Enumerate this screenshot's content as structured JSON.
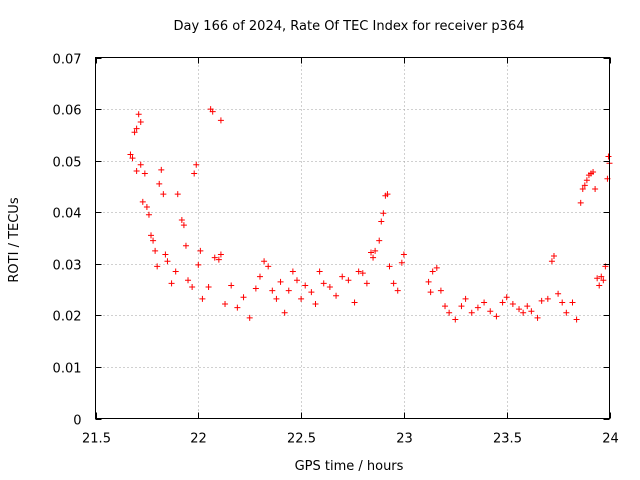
{
  "chart_data": {
    "type": "scatter",
    "title": "Day 166 of 2024, Rate Of TEC Index for receiver p364",
    "xlabel": "GPS time / hours",
    "ylabel": "ROTI / TECUs",
    "xlim": [
      21.5,
      24.0
    ],
    "ylim": [
      0,
      0.07
    ],
    "xticks": [
      21.5,
      22,
      22.5,
      23,
      23.5,
      24
    ],
    "xtick_labels": [
      "21.5",
      "22",
      "22.5",
      "23",
      "23.5",
      "24"
    ],
    "yticks": [
      0,
      0.01,
      0.02,
      0.03,
      0.04,
      0.05,
      0.06,
      0.07
    ],
    "ytick_labels": [
      "0",
      "0.01",
      "0.02",
      "0.03",
      "0.04",
      "0.05",
      "0.06",
      "0.07"
    ],
    "grid": true,
    "marker": "+",
    "color": "#ff0000",
    "series": [
      {
        "name": "ROTI",
        "points": [
          [
            21.67,
            0.0512
          ],
          [
            21.68,
            0.0505
          ],
          [
            21.69,
            0.0555
          ],
          [
            21.7,
            0.0562
          ],
          [
            21.71,
            0.059
          ],
          [
            21.72,
            0.0575
          ],
          [
            21.7,
            0.048
          ],
          [
            21.72,
            0.0492
          ],
          [
            21.74,
            0.0475
          ],
          [
            21.73,
            0.042
          ],
          [
            21.75,
            0.041
          ],
          [
            21.76,
            0.0395
          ],
          [
            21.77,
            0.0355
          ],
          [
            21.78,
            0.0345
          ],
          [
            21.79,
            0.0325
          ],
          [
            21.8,
            0.0295
          ],
          [
            21.81,
            0.0455
          ],
          [
            21.82,
            0.0482
          ],
          [
            21.83,
            0.0435
          ],
          [
            21.84,
            0.0318
          ],
          [
            21.85,
            0.0305
          ],
          [
            21.87,
            0.0262
          ],
          [
            21.89,
            0.0285
          ],
          [
            21.9,
            0.0435
          ],
          [
            21.92,
            0.0385
          ],
          [
            21.93,
            0.0375
          ],
          [
            21.94,
            0.0335
          ],
          [
            21.95,
            0.0268
          ],
          [
            21.97,
            0.0255
          ],
          [
            21.98,
            0.0475
          ],
          [
            21.99,
            0.0492
          ],
          [
            22.0,
            0.0298
          ],
          [
            22.01,
            0.0325
          ],
          [
            22.06,
            0.06
          ],
          [
            22.07,
            0.0595
          ],
          [
            22.11,
            0.0578
          ],
          [
            22.08,
            0.0312
          ],
          [
            22.1,
            0.0308
          ],
          [
            22.11,
            0.0318
          ],
          [
            22.02,
            0.0232
          ],
          [
            22.05,
            0.0255
          ],
          [
            22.13,
            0.0222
          ],
          [
            22.16,
            0.0258
          ],
          [
            22.19,
            0.0215
          ],
          [
            22.22,
            0.0235
          ],
          [
            22.25,
            0.0195
          ],
          [
            22.28,
            0.0252
          ],
          [
            22.3,
            0.0275
          ],
          [
            22.32,
            0.0305
          ],
          [
            22.34,
            0.0295
          ],
          [
            22.36,
            0.0248
          ],
          [
            22.38,
            0.0232
          ],
          [
            22.4,
            0.0265
          ],
          [
            22.42,
            0.0205
          ],
          [
            22.44,
            0.0248
          ],
          [
            22.46,
            0.0285
          ],
          [
            22.48,
            0.0268
          ],
          [
            22.5,
            0.0232
          ],
          [
            22.52,
            0.0258
          ],
          [
            22.55,
            0.0245
          ],
          [
            22.57,
            0.0222
          ],
          [
            22.59,
            0.0285
          ],
          [
            22.61,
            0.0262
          ],
          [
            22.64,
            0.0255
          ],
          [
            22.67,
            0.0238
          ],
          [
            22.7,
            0.0275
          ],
          [
            22.73,
            0.0268
          ],
          [
            22.76,
            0.0225
          ],
          [
            22.78,
            0.0285
          ],
          [
            22.8,
            0.0282
          ],
          [
            22.82,
            0.0262
          ],
          [
            22.84,
            0.0322
          ],
          [
            22.85,
            0.0312
          ],
          [
            22.86,
            0.0325
          ],
          [
            22.88,
            0.0345
          ],
          [
            22.89,
            0.0382
          ],
          [
            22.9,
            0.0398
          ],
          [
            22.91,
            0.0432
          ],
          [
            22.92,
            0.0435
          ],
          [
            22.93,
            0.0295
          ],
          [
            22.95,
            0.0262
          ],
          [
            22.97,
            0.0248
          ],
          [
            22.99,
            0.0302
          ],
          [
            23.0,
            0.0318
          ],
          [
            23.12,
            0.0265
          ],
          [
            23.13,
            0.0245
          ],
          [
            23.14,
            0.0285
          ],
          [
            23.16,
            0.0292
          ],
          [
            23.18,
            0.0248
          ],
          [
            23.2,
            0.0218
          ],
          [
            23.22,
            0.0205
          ],
          [
            23.25,
            0.0192
          ],
          [
            23.28,
            0.0218
          ],
          [
            23.3,
            0.0232
          ],
          [
            23.33,
            0.0205
          ],
          [
            23.36,
            0.0215
          ],
          [
            23.39,
            0.0225
          ],
          [
            23.42,
            0.0208
          ],
          [
            23.45,
            0.0198
          ],
          [
            23.48,
            0.0225
          ],
          [
            23.5,
            0.0235
          ],
          [
            23.53,
            0.0222
          ],
          [
            23.56,
            0.0212
          ],
          [
            23.58,
            0.0205
          ],
          [
            23.6,
            0.0218
          ],
          [
            23.62,
            0.0208
          ],
          [
            23.65,
            0.0195
          ],
          [
            23.67,
            0.0228
          ],
          [
            23.7,
            0.0232
          ],
          [
            23.72,
            0.0305
          ],
          [
            23.73,
            0.0315
          ],
          [
            23.75,
            0.0242
          ],
          [
            23.77,
            0.0225
          ],
          [
            23.79,
            0.0205
          ],
          [
            23.82,
            0.0225
          ],
          [
            23.84,
            0.0192
          ],
          [
            23.86,
            0.0418
          ],
          [
            23.87,
            0.0445
          ],
          [
            23.88,
            0.0452
          ],
          [
            23.89,
            0.0462
          ],
          [
            23.9,
            0.0472
          ],
          [
            23.91,
            0.0475
          ],
          [
            23.92,
            0.0478
          ],
          [
            23.93,
            0.0445
          ],
          [
            23.94,
            0.0272
          ],
          [
            23.95,
            0.0258
          ],
          [
            23.96,
            0.0275
          ],
          [
            23.97,
            0.0268
          ],
          [
            23.98,
            0.0295
          ],
          [
            23.99,
            0.0465
          ],
          [
            23.995,
            0.0508
          ],
          [
            24.0,
            0.0495
          ]
        ]
      }
    ]
  }
}
